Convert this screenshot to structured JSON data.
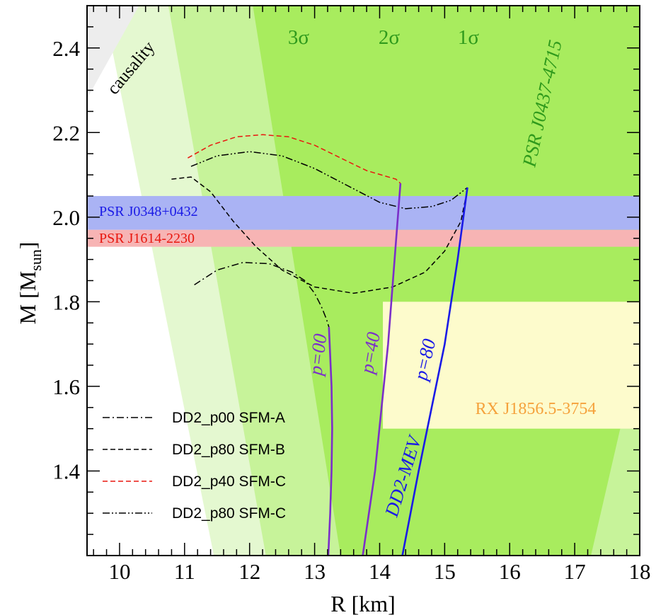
{
  "chart_data": {
    "type": "line",
    "xlabel": "R [km]",
    "ylabel": "M [M",
    "ylabel_sub": "sun",
    "ylabel_close": "]",
    "xlim": [
      9.5,
      18
    ],
    "ylim": [
      1.2,
      2.5
    ],
    "x_major_ticks": [
      10,
      11,
      12,
      13,
      14,
      15,
      16,
      17,
      18
    ],
    "y_major_ticks": [
      1.4,
      1.6,
      1.8,
      2.0,
      2.2,
      2.4
    ],
    "x_tick_labels": [
      "10",
      "11",
      "12",
      "13",
      "14",
      "15",
      "16",
      "17",
      "18"
    ],
    "y_tick_labels": [
      "1.4",
      "1.6",
      "1.8",
      "2.0",
      "2.2",
      "2.4"
    ],
    "colors": {
      "sigma3": "#e4f8d0",
      "sigma2": "#c7f39a",
      "sigma1": "#a8ec5e",
      "sigma_text": "#2f9a1c",
      "psr_j0348": "#aab3f4",
      "psr_j1614": "#f7b4b4",
      "rx_box": "#fdfbcc",
      "rx_text": "#f5a23c",
      "causality": "#ededed",
      "purple": "#7b2fc9",
      "blue": "#1a1ae6",
      "red_dash": "#e8170f"
    },
    "regions": {
      "sigma3": [
        [
          9.75,
          2.5
        ],
        [
          11.45,
          1.2
        ],
        [
          18.0,
          1.2
        ],
        [
          18.0,
          2.5
        ]
      ],
      "sigma2": [
        [
          10.75,
          2.5
        ],
        [
          12.25,
          1.2
        ],
        [
          18.0,
          1.2
        ],
        [
          18.0,
          2.5
        ]
      ],
      "sigma1": [
        [
          12.05,
          2.5
        ],
        [
          13.4,
          1.2
        ],
        [
          17.25,
          1.2
        ],
        [
          18.0,
          1.7
        ],
        [
          18.0,
          2.5
        ]
      ],
      "causality": [
        [
          9.5,
          2.5
        ],
        [
          10.3,
          2.5
        ],
        [
          9.5,
          2.28
        ]
      ],
      "psr_j0348": {
        "label": "PSR J0348+0432",
        "ymin": 1.97,
        "ymax": 2.05
      },
      "psr_j1614": {
        "label": "PSR J1614-2230",
        "ymin": 1.93,
        "ymax": 1.97
      },
      "rx_box": {
        "label": "RX J1856.5-3754",
        "xmin": 14.05,
        "xmax": 18.0,
        "ymin": 1.5,
        "ymax": 1.8
      }
    },
    "annotations": {
      "sigma3": "3σ",
      "sigma2": "2σ",
      "sigma1": "1σ",
      "psr_j0437": "PSR J0437-4715",
      "causality": "causality",
      "p00": "p=00",
      "p40": "p=40",
      "p80": "p=80",
      "dd2_mev": "DD2-MEV"
    },
    "series": [
      {
        "name": "DD2_p00 SFM-A",
        "style": "dash-dot",
        "color": "#000000",
        "x": [
          11.15,
          11.5,
          11.9,
          12.3,
          12.65,
          12.85,
          13.0,
          13.1,
          13.18,
          13.22
        ],
        "y": [
          1.84,
          1.875,
          1.893,
          1.89,
          1.87,
          1.85,
          1.82,
          1.79,
          1.76,
          1.74
        ]
      },
      {
        "name": "DD2_p80 SFM-B",
        "style": "dashed",
        "color": "#000000",
        "x": [
          10.8,
          11.1,
          11.4,
          11.75,
          12.1,
          12.5,
          13.0,
          13.6,
          14.2,
          14.7,
          15.0,
          15.25,
          15.35
        ],
        "y": [
          2.09,
          2.095,
          2.06,
          1.99,
          1.93,
          1.875,
          1.835,
          1.82,
          1.835,
          1.87,
          1.92,
          1.99,
          2.065
        ]
      },
      {
        "name": "DD2_p40 SFM-C",
        "style": "dashed",
        "color": "#e8170f",
        "x": [
          11.05,
          11.4,
          11.8,
          12.2,
          12.6,
          13.0,
          13.4,
          13.8,
          14.25,
          14.32
        ],
        "y": [
          2.14,
          2.17,
          2.19,
          2.195,
          2.19,
          2.17,
          2.14,
          2.11,
          2.09,
          2.08
        ]
      },
      {
        "name": "DD2_p80 SFM-C",
        "style": "dash-dot-dot",
        "color": "#000000",
        "x": [
          11.1,
          11.5,
          12.0,
          12.5,
          13.0,
          13.5,
          14.0,
          14.4,
          14.8,
          15.1,
          15.35
        ],
        "y": [
          2.12,
          2.145,
          2.155,
          2.145,
          2.115,
          2.075,
          2.035,
          2.02,
          2.025,
          2.04,
          2.07
        ]
      },
      {
        "name": "p=00",
        "style": "solid",
        "color": "#7b2fc9",
        "x": [
          13.22,
          13.26,
          13.27,
          13.26,
          13.24,
          13.21
        ],
        "y": [
          1.74,
          1.6,
          1.5,
          1.4,
          1.3,
          1.2
        ]
      },
      {
        "name": "p=40",
        "style": "solid",
        "color": "#7b2fc9",
        "x": [
          14.32,
          14.23,
          14.13,
          14.03,
          13.93,
          13.74
        ],
        "y": [
          2.08,
          1.9,
          1.7,
          1.55,
          1.4,
          1.2
        ]
      },
      {
        "name": "p=80",
        "style": "solid",
        "color": "#1a1ae6",
        "x": [
          15.35,
          15.2,
          15.0,
          14.8,
          14.6,
          14.35
        ],
        "y": [
          2.07,
          1.9,
          1.7,
          1.55,
          1.4,
          1.2
        ]
      }
    ],
    "legend": {
      "placement": "bottom-left",
      "entries": [
        "DD2_p00 SFM-A",
        "DD2_p80 SFM-B",
        "DD2_p40 SFM-C",
        "DD2_p80 SFM-C"
      ]
    }
  }
}
